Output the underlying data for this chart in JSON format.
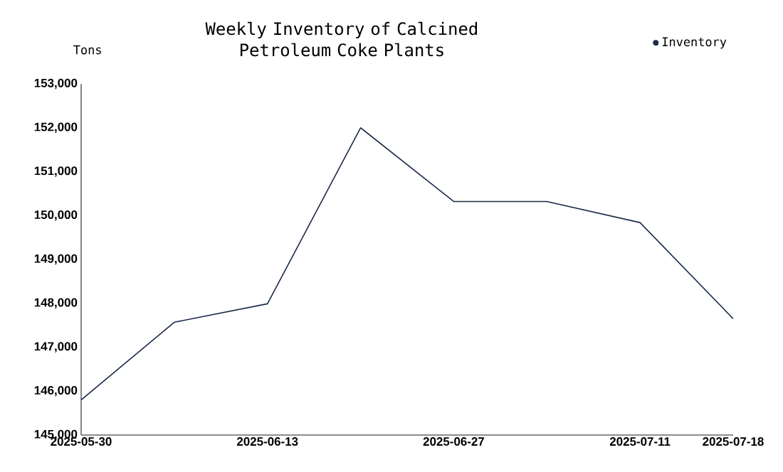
{
  "chart_data": {
    "type": "line",
    "title": "Weekly Inventory of Calcined Petroleum Coke Plants",
    "ylabel": "Tons",
    "x": [
      "2025-05-30",
      "2025-06-06",
      "2025-06-13",
      "2025-06-20",
      "2025-06-27",
      "2025-07-04",
      "2025-07-11",
      "2025-07-18"
    ],
    "series": [
      {
        "name": "Inventory",
        "color": "#1c2b4a",
        "values": [
          145800,
          147570,
          147990,
          152000,
          150320,
          150320,
          149840,
          147650
        ]
      }
    ],
    "xlim": [
      "2025-05-30",
      "2025-07-18"
    ],
    "xticks": [
      "2025-05-30",
      "2025-06-13",
      "2025-06-27",
      "2025-07-11",
      "2025-07-18"
    ],
    "ylim": [
      145000,
      153000
    ],
    "yticks": [
      {
        "value": 145000,
        "label": "145,000"
      },
      {
        "value": 146000,
        "label": "146,000"
      },
      {
        "value": 147000,
        "label": "147,000"
      },
      {
        "value": 148000,
        "label": "148,000"
      },
      {
        "value": 149000,
        "label": "149,000"
      },
      {
        "value": 150000,
        "label": "150,000"
      },
      {
        "value": 151000,
        "label": "151,000"
      },
      {
        "value": 152000,
        "label": "152,000"
      },
      {
        "value": 153000,
        "label": "153,000"
      }
    ],
    "grid": false,
    "legend": "top right",
    "line_style": "solid"
  }
}
